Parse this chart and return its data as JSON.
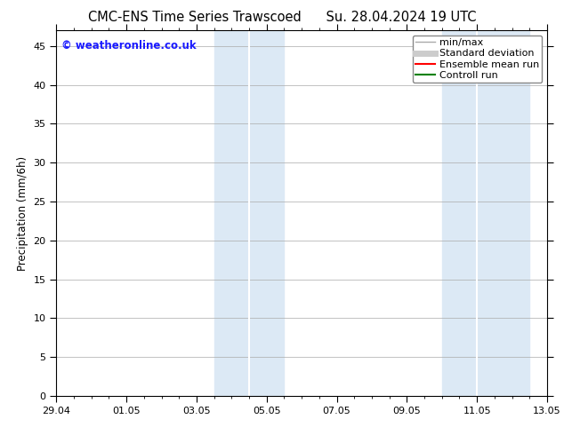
{
  "title_left": "CMC-ENS Time Series Trawscoed",
  "title_right": "Su. 28.04.2024 19 UTC",
  "ylabel": "Precipitation (mm/6h)",
  "ylim": [
    0,
    47
  ],
  "yticks": [
    0,
    5,
    10,
    15,
    20,
    25,
    30,
    35,
    40,
    45
  ],
  "xtick_labels": [
    "29.04",
    "01.05",
    "03.05",
    "05.05",
    "07.05",
    "09.05",
    "11.05",
    "13.05"
  ],
  "xtick_positions": [
    0,
    2,
    4,
    6,
    8,
    10,
    12,
    14
  ],
  "x_min": 0,
  "x_max": 14,
  "shaded_bands": [
    {
      "xstart": 4.5,
      "xend": 5.5
    },
    {
      "xstart": 5.5,
      "xend": 6.5
    },
    {
      "xstart": 11.0,
      "xend": 12.0
    },
    {
      "xstart": 12.0,
      "xend": 13.5
    }
  ],
  "shade_color": "#dce9f5",
  "background_color": "#ffffff",
  "grid_color": "#aaaaaa",
  "copyright_text": "© weatheronline.co.uk",
  "copyright_color": "#1a1aff",
  "legend_items": [
    {
      "label": "min/max",
      "color": "#aaaaaa",
      "lw": 1.0,
      "style": "solid"
    },
    {
      "label": "Standard deviation",
      "color": "#cccccc",
      "lw": 5,
      "style": "solid"
    },
    {
      "label": "Ensemble mean run",
      "color": "#ff0000",
      "lw": 1.5,
      "style": "solid"
    },
    {
      "label": "Controll run",
      "color": "#008000",
      "lw": 1.5,
      "style": "solid"
    }
  ],
  "title_fontsize": 10.5,
  "tick_fontsize": 8,
  "ylabel_fontsize": 8.5,
  "legend_fontsize": 8
}
